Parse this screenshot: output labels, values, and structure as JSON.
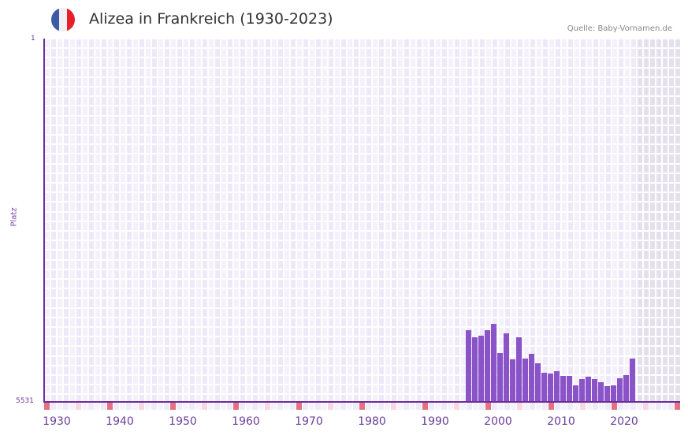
{
  "header": {
    "title": "Alizea in Frankreich (1930-2023)",
    "source": "Quelle: Baby-Vornamen.de",
    "flag_colors": [
      "#3b5aa8",
      "#f0f0f4",
      "#e5202b"
    ]
  },
  "axes": {
    "y_top_label": "1",
    "y_bottom_label": "5531",
    "y_title": "Platz"
  },
  "colors": {
    "bar": "#8a54c8",
    "axis": "#6a2d9a",
    "grid_a": "#eee9f8",
    "grid_b": "#f4f1fb",
    "grid_future": "#e4e0ec",
    "tick_red": "#e57080",
    "tick_pink": "#f7d8e0"
  },
  "chart_data": {
    "type": "bar",
    "title": "Alizea in Frankreich (1930-2023)",
    "xlabel": "",
    "ylabel": "Platz",
    "ylim": [
      5531,
      1
    ],
    "y_inverted": true,
    "x_range": [
      1928,
      2028
    ],
    "x_ticks": [
      1930,
      1940,
      1950,
      1960,
      1970,
      1980,
      1990,
      2000,
      2010,
      2020
    ],
    "grid": true,
    "categories": [
      1996,
      1997,
      1998,
      1999,
      2000,
      2001,
      2002,
      2003,
      2004,
      2005,
      2006,
      2007,
      2008,
      2009,
      2010,
      2011,
      2012,
      2013,
      2014,
      2015,
      2016,
      2017,
      2018,
      2019,
      2020,
      2021,
      2022
    ],
    "values": [
      4440,
      4547,
      4523,
      4440,
      4343,
      4787,
      4487,
      4883,
      4547,
      4871,
      4799,
      4943,
      5087,
      5099,
      5063,
      5135,
      5135,
      5279,
      5183,
      5147,
      5183,
      5231,
      5291,
      5279,
      5171,
      5123,
      4871
    ]
  }
}
